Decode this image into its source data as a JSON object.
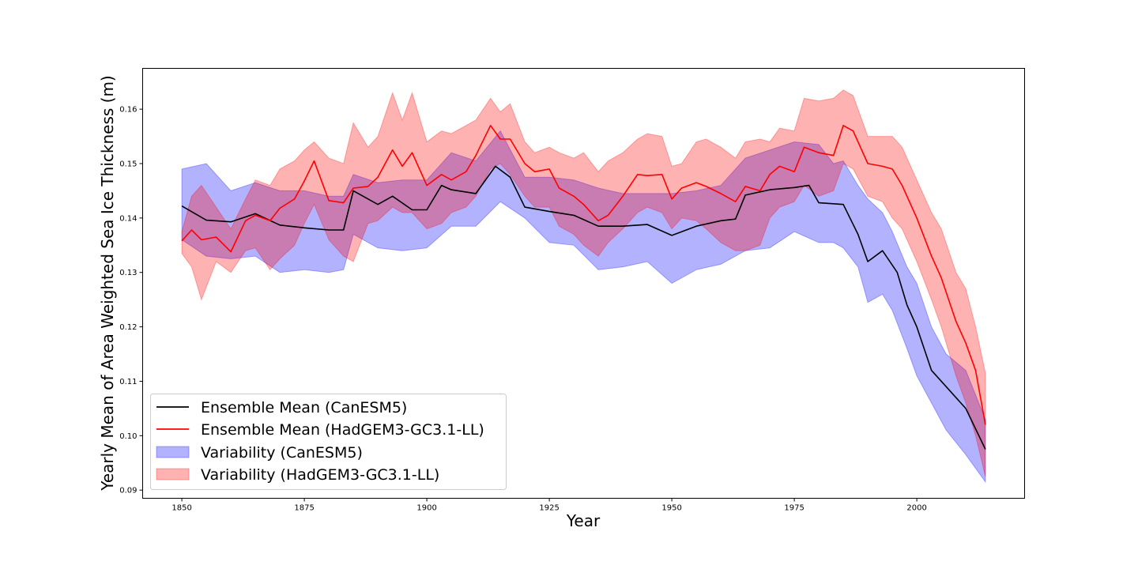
{
  "chart_data": {
    "type": "line",
    "xlabel": "Year",
    "ylabel": "Yearly Mean of Area Weighted Sea Ice Thickness (m)",
    "xlim": [
      1842,
      2022
    ],
    "ylim": [
      0.0885,
      0.1675
    ],
    "xticks": [
      1850,
      1875,
      1900,
      1925,
      1950,
      1975,
      2000
    ],
    "xtick_labels": [
      "1850",
      "1875",
      "1900",
      "1925",
      "1950",
      "1975",
      "2000"
    ],
    "yticks": [
      0.09,
      0.1,
      0.11,
      0.12,
      0.13,
      0.14,
      0.15,
      0.16
    ],
    "ytick_labels": [
      "0.09",
      "0.10",
      "0.11",
      "0.12",
      "0.13",
      "0.14",
      "0.15",
      "0.16"
    ],
    "grid": false,
    "legend_position": "lower-left",
    "legend": [
      {
        "label": "Ensemble Mean (CanESM5)",
        "kind": "line",
        "color": "#000000"
      },
      {
        "label": "Ensemble Mean (HadGEM3-GC3.1-LL)",
        "kind": "line",
        "color": "#ff0000"
      },
      {
        "label": "Variability (CanESM5)",
        "kind": "band",
        "color": "#0000ff"
      },
      {
        "label": "Variability (HadGEM3-GC3.1-LL)",
        "kind": "band",
        "color": "#ff0000"
      }
    ],
    "series": [
      {
        "name": "Ensemble Mean (CanESM5)",
        "kind": "line",
        "color": "#000000",
        "x": [
          1850,
          1855,
          1860,
          1865,
          1870,
          1875,
          1880,
          1883,
          1885,
          1890,
          1893,
          1897,
          1900,
          1903,
          1905,
          1910,
          1914,
          1917,
          1920,
          1925,
          1930,
          1935,
          1940,
          1945,
          1950,
          1955,
          1960,
          1963,
          1965,
          1970,
          1975,
          1978,
          1980,
          1985,
          1988,
          1990,
          1993,
          1996,
          1998,
          2000,
          2003,
          2006,
          2010,
          2014
        ],
        "y": [
          0.1422,
          0.1396,
          0.1393,
          0.1408,
          0.1387,
          0.1382,
          0.1378,
          0.1378,
          0.145,
          0.1425,
          0.144,
          0.1415,
          0.1415,
          0.146,
          0.1452,
          0.1445,
          0.1495,
          0.1475,
          0.142,
          0.1412,
          0.1405,
          0.1385,
          0.1385,
          0.1388,
          0.1368,
          0.1385,
          0.1395,
          0.1398,
          0.1442,
          0.1452,
          0.1456,
          0.146,
          0.1428,
          0.1425,
          0.137,
          0.132,
          0.134,
          0.13,
          0.124,
          0.12,
          0.112,
          0.109,
          0.105,
          0.0975
        ]
      },
      {
        "name": "Ensemble Mean (HadGEM3-GC3.1-LL)",
        "kind": "line",
        "color": "#ff0000",
        "x": [
          1850,
          1852,
          1854,
          1857,
          1860,
          1863,
          1865,
          1868,
          1870,
          1873,
          1875,
          1877,
          1880,
          1883,
          1885,
          1888,
          1890,
          1893,
          1895,
          1897,
          1900,
          1903,
          1905,
          1908,
          1910,
          1913,
          1915,
          1917,
          1920,
          1922,
          1925,
          1927,
          1930,
          1932,
          1935,
          1937,
          1940,
          1943,
          1945,
          1948,
          1950,
          1952,
          1955,
          1957,
          1960,
          1963,
          1965,
          1968,
          1970,
          1972,
          1975,
          1977,
          1980,
          1983,
          1985,
          1987,
          1990,
          1993,
          1995,
          1997,
          2000,
          2003,
          2005,
          2008,
          2010,
          2012,
          2014
        ],
        "y": [
          0.1358,
          0.1378,
          0.136,
          0.1365,
          0.1338,
          0.1395,
          0.1405,
          0.1395,
          0.1418,
          0.1435,
          0.1468,
          0.1505,
          0.1432,
          0.1428,
          0.1455,
          0.1458,
          0.1475,
          0.1525,
          0.1495,
          0.152,
          0.146,
          0.148,
          0.147,
          0.1485,
          0.1515,
          0.157,
          0.1545,
          0.1545,
          0.15,
          0.1485,
          0.149,
          0.1455,
          0.144,
          0.1425,
          0.1395,
          0.1405,
          0.144,
          0.148,
          0.1478,
          0.148,
          0.1435,
          0.1455,
          0.1465,
          0.1458,
          0.1445,
          0.143,
          0.1458,
          0.145,
          0.148,
          0.1495,
          0.1485,
          0.153,
          0.152,
          0.1515,
          0.157,
          0.156,
          0.15,
          0.1495,
          0.149,
          0.146,
          0.14,
          0.133,
          0.129,
          0.121,
          0.117,
          0.112,
          0.102
        ]
      },
      {
        "name": "Variability (CanESM5)",
        "kind": "band",
        "color": "#0000ff",
        "x": [
          1850,
          1855,
          1860,
          1865,
          1870,
          1875,
          1880,
          1883,
          1885,
          1890,
          1895,
          1900,
          1905,
          1910,
          1915,
          1920,
          1925,
          1930,
          1935,
          1940,
          1945,
          1950,
          1955,
          1960,
          1965,
          1970,
          1975,
          1980,
          1983,
          1985,
          1988,
          1990,
          1993,
          1995,
          1998,
          2000,
          2003,
          2006,
          2010,
          2014
        ],
        "lower": [
          0.136,
          0.133,
          0.1325,
          0.133,
          0.13,
          0.1305,
          0.13,
          0.1305,
          0.137,
          0.1345,
          0.134,
          0.1345,
          0.1385,
          0.1385,
          0.143,
          0.14,
          0.1355,
          0.135,
          0.1305,
          0.131,
          0.132,
          0.128,
          0.1305,
          0.1315,
          0.134,
          0.1345,
          0.1375,
          0.1355,
          0.1355,
          0.1345,
          0.131,
          0.1245,
          0.126,
          0.123,
          0.116,
          0.111,
          0.106,
          0.101,
          0.0965,
          0.0915
        ],
        "upper": [
          0.149,
          0.15,
          0.145,
          0.1465,
          0.145,
          0.145,
          0.144,
          0.144,
          0.148,
          0.1465,
          0.147,
          0.147,
          0.152,
          0.1505,
          0.156,
          0.1475,
          0.1475,
          0.147,
          0.1455,
          0.1445,
          0.1445,
          0.1445,
          0.145,
          0.146,
          0.151,
          0.1525,
          0.154,
          0.1535,
          0.15,
          0.1505,
          0.146,
          0.1435,
          0.141,
          0.1375,
          0.131,
          0.128,
          0.12,
          0.115,
          0.112,
          0.103
        ]
      },
      {
        "name": "Variability (HadGEM3-GC3.1-LL)",
        "kind": "band",
        "color": "#ff0000",
        "x": [
          1850,
          1852,
          1854,
          1857,
          1860,
          1863,
          1865,
          1868,
          1870,
          1873,
          1875,
          1877,
          1880,
          1883,
          1885,
          1888,
          1890,
          1893,
          1895,
          1897,
          1900,
          1903,
          1905,
          1908,
          1910,
          1913,
          1915,
          1917,
          1920,
          1922,
          1925,
          1927,
          1930,
          1932,
          1935,
          1937,
          1940,
          1943,
          1945,
          1948,
          1950,
          1952,
          1955,
          1957,
          1960,
          1963,
          1965,
          1968,
          1970,
          1972,
          1975,
          1977,
          1980,
          1983,
          1985,
          1987,
          1990,
          1993,
          1995,
          1997,
          2000,
          2003,
          2005,
          2008,
          2010,
          2012,
          2014
        ],
        "lower": [
          0.1335,
          0.131,
          0.125,
          0.132,
          0.13,
          0.134,
          0.1345,
          0.1305,
          0.1325,
          0.135,
          0.139,
          0.1425,
          0.136,
          0.133,
          0.132,
          0.139,
          0.1395,
          0.142,
          0.141,
          0.141,
          0.138,
          0.139,
          0.141,
          0.142,
          0.144,
          0.149,
          0.15,
          0.148,
          0.144,
          0.142,
          0.142,
          0.1385,
          0.137,
          0.135,
          0.133,
          0.1355,
          0.138,
          0.141,
          0.142,
          0.141,
          0.138,
          0.14,
          0.1395,
          0.138,
          0.1355,
          0.134,
          0.134,
          0.135,
          0.14,
          0.142,
          0.143,
          0.146,
          0.144,
          0.145,
          0.15,
          0.149,
          0.144,
          0.143,
          0.14,
          0.138,
          0.132,
          0.125,
          0.12,
          0.111,
          0.106,
          0.1,
          0.0925
        ],
        "upper": [
          0.1375,
          0.144,
          0.146,
          0.142,
          0.138,
          0.1435,
          0.147,
          0.146,
          0.149,
          0.1505,
          0.1525,
          0.154,
          0.151,
          0.15,
          0.1575,
          0.153,
          0.155,
          0.163,
          0.158,
          0.163,
          0.154,
          0.156,
          0.1555,
          0.157,
          0.158,
          0.162,
          0.1595,
          0.161,
          0.154,
          0.152,
          0.153,
          0.152,
          0.151,
          0.152,
          0.1485,
          0.1505,
          0.152,
          0.1545,
          0.1555,
          0.155,
          0.1495,
          0.15,
          0.154,
          0.1545,
          0.153,
          0.151,
          0.154,
          0.1545,
          0.154,
          0.1565,
          0.156,
          0.162,
          0.1615,
          0.162,
          0.1635,
          0.1625,
          0.155,
          0.155,
          0.155,
          0.153,
          0.147,
          0.141,
          0.138,
          0.13,
          0.127,
          0.12,
          0.1115
        ]
      }
    ]
  }
}
